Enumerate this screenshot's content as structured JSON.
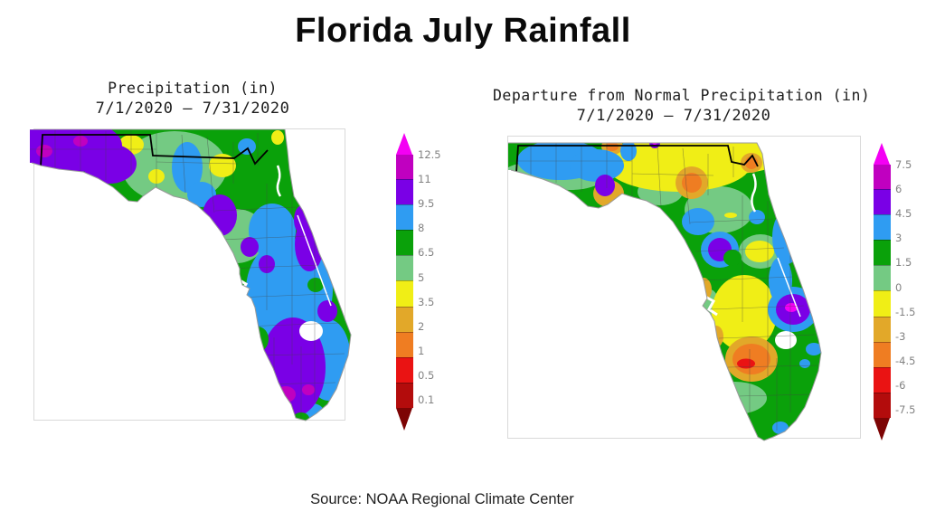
{
  "page": {
    "title": "Florida July Rainfall",
    "source": "Source:  NOAA Regional Climate Center",
    "background": "#ffffff",
    "figure_type": "precipitation contour maps",
    "region": "Florida",
    "units": "inches"
  },
  "panels": [
    {
      "id": "precipitation",
      "title": "Precipitation (in)",
      "date_range": "7/1/2020 – 7/31/2020",
      "colorbar": {
        "labels": [
          "12.5",
          "11",
          "9.5",
          "8",
          "6.5",
          "5",
          "3.5",
          "2",
          "1",
          "0.5",
          "0.1"
        ],
        "values": [
          12.5,
          11,
          9.5,
          8,
          6.5,
          5,
          3.5,
          2,
          1,
          0.5,
          0.1
        ],
        "segment_colors": [
          "#c000c0",
          "#7a00e6",
          "#2f9cf2",
          "#0aa10a",
          "#74ca83",
          "#f0ee16",
          "#e2a829",
          "#ef7d22",
          "#ea1313",
          "#b30c0c"
        ],
        "arrow_top_color": "#f400f4",
        "arrow_bottom_color": "#7d0404"
      }
    },
    {
      "id": "departure",
      "title": "Departure from Normal Precipitation (in)",
      "date_range": "7/1/2020 – 7/31/2020",
      "colorbar": {
        "labels": [
          "7.5",
          "6",
          "4.5",
          "3",
          "1.5",
          "0",
          "-1.5",
          "-3",
          "-4.5",
          "-6",
          "-7.5"
        ],
        "values": [
          7.5,
          6,
          4.5,
          3,
          1.5,
          0,
          -1.5,
          -3,
          -4.5,
          -6,
          -7.5
        ],
        "segment_colors": [
          "#c000c0",
          "#7a00e6",
          "#2f9cf2",
          "#0aa10a",
          "#74ca83",
          "#f0ee16",
          "#e2a829",
          "#ef7d22",
          "#ea1313",
          "#b30c0c"
        ],
        "arrow_top_color": "#f400f4",
        "arrow_bottom_color": "#7d0404"
      }
    }
  ],
  "palette": {
    "magenta": "#f400f4",
    "dark_magenta": "#c000c0",
    "violet": "#7a00e6",
    "blue": "#2f9cf2",
    "green": "#0aa10a",
    "light_green": "#74ca83",
    "yellow": "#f0ee16",
    "gold": "#e2a829",
    "orange": "#ef7d22",
    "red": "#ea1313",
    "dark_red": "#b30c0c",
    "maroon": "#7d0404",
    "county_line": "#444444",
    "state_line": "#000000",
    "coastline": "#9a9a9a",
    "water": "#ffffff"
  }
}
